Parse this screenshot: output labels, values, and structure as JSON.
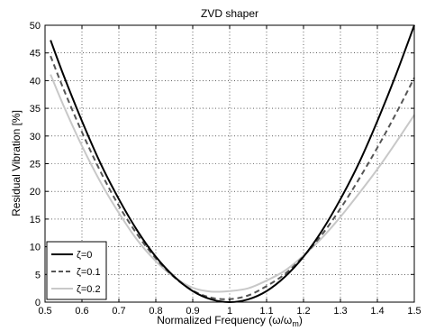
{
  "chart_data": {
    "type": "line",
    "title": "ZVD shaper",
    "xlabel_main": "Normalized Frequency (ω/ω",
    "xlabel_sub": "m",
    "xlabel_close": ")",
    "ylabel": "Residual Vibration [%]",
    "xlim": [
      0.5,
      1.5
    ],
    "ylim": [
      0,
      50
    ],
    "xticks": [
      "0.5",
      "0.6",
      "0.7",
      "0.8",
      "0.9",
      "1",
      "1.1",
      "1.2",
      "1.3",
      "1.4",
      "1.5"
    ],
    "yticks": [
      "0",
      "5",
      "10",
      "15",
      "20",
      "25",
      "30",
      "35",
      "40",
      "45",
      "50"
    ],
    "grid": true,
    "legend_position": "bottom-left",
    "x": [
      0.5,
      0.55,
      0.6,
      0.65,
      0.7,
      0.75,
      0.8,
      0.85,
      0.9,
      0.95,
      1.0,
      1.05,
      1.1,
      1.15,
      1.2,
      1.25,
      1.3,
      1.35,
      1.4,
      1.45,
      1.5
    ],
    "series": [
      {
        "name": "ζ=0",
        "color": "#000000",
        "dash": "solid",
        "x_start": 0.515,
        "values": [
          50.0,
          41.0,
          32.7,
          25.1,
          18.6,
          12.9,
          8.2,
          4.6,
          2.0,
          0.5,
          0.0,
          0.5,
          2.0,
          4.6,
          8.2,
          12.9,
          18.6,
          25.1,
          32.7,
          41.0,
          50.0
        ]
      },
      {
        "name": "ζ=0.1",
        "color": "#555555",
        "dash": "dashed",
        "x_start": 0.515,
        "values": [
          47.0,
          38.5,
          30.7,
          23.6,
          17.4,
          12.2,
          7.9,
          4.5,
          2.1,
          0.8,
          0.55,
          1.2,
          2.9,
          5.1,
          8.3,
          12.2,
          16.9,
          22.2,
          27.9,
          34.0,
          40.5
        ]
      },
      {
        "name": "ζ=0.2",
        "color": "#c8c8c8",
        "dash": "solid",
        "x_start": 0.515,
        "values": [
          43.5,
          35.5,
          28.2,
          21.7,
          16.1,
          11.2,
          7.4,
          4.5,
          2.6,
          1.9,
          2.0,
          2.5,
          3.9,
          5.7,
          8.4,
          11.6,
          15.4,
          19.6,
          24.0,
          28.8,
          33.8
        ]
      }
    ]
  }
}
